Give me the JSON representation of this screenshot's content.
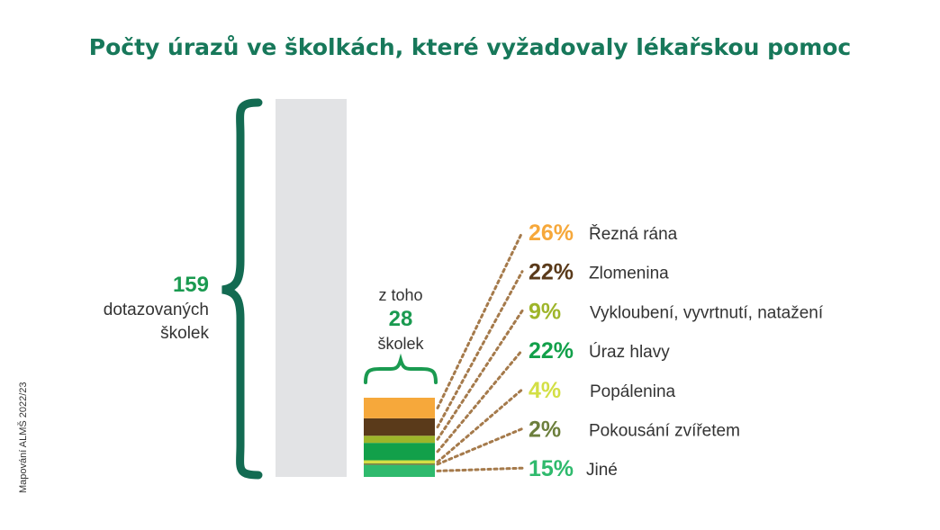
{
  "title": "Počty úrazů ve školkách, které vyžadovaly lékařskou pomoc",
  "total": {
    "value": "159",
    "label_line1": "dotazovaných",
    "label_line2": "školek"
  },
  "subset": {
    "prefix": "z toho",
    "value": "28",
    "label": "školek"
  },
  "source": "Mapování ALMŠ 2022/23",
  "colors": {
    "title": "#17785a",
    "brace_large": "#136b52",
    "brace_small": "#1a9a50",
    "gray_bar": "#e2e3e5",
    "leader": "#a57a4b"
  },
  "chart_data": {
    "type": "bar",
    "total_schools": 159,
    "schools_with_injuries": 28,
    "categories": [
      "Řezná rána",
      "Zlomenina",
      "Vykloubení, vyvrtnutí, natažení",
      "Úraz hlavy",
      "Popálenina",
      "Pokousání zvířetem",
      "Jiné"
    ],
    "values": [
      26,
      22,
      9,
      22,
      4,
      2,
      15
    ],
    "value_labels": [
      "26%",
      "22%",
      "9%",
      "22%",
      "4%",
      "2%",
      "15%"
    ],
    "colors": [
      "#f6a83b",
      "#5a3a1a",
      "#9eb52a",
      "#12a04a",
      "#d3df45",
      "#6c7f3c",
      "#2fba6d"
    ]
  }
}
